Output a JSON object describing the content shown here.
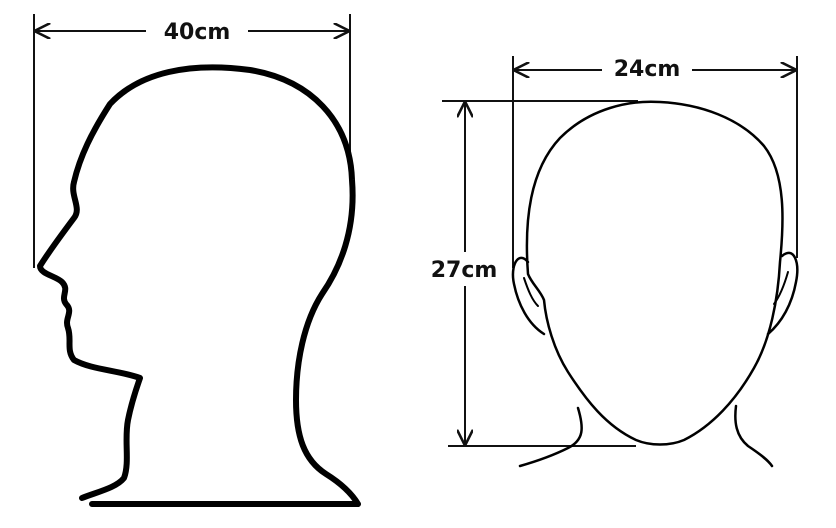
{
  "side_view": {
    "width_label": "40cm"
  },
  "front_view": {
    "width_label": "24cm",
    "height_label": "27cm"
  }
}
